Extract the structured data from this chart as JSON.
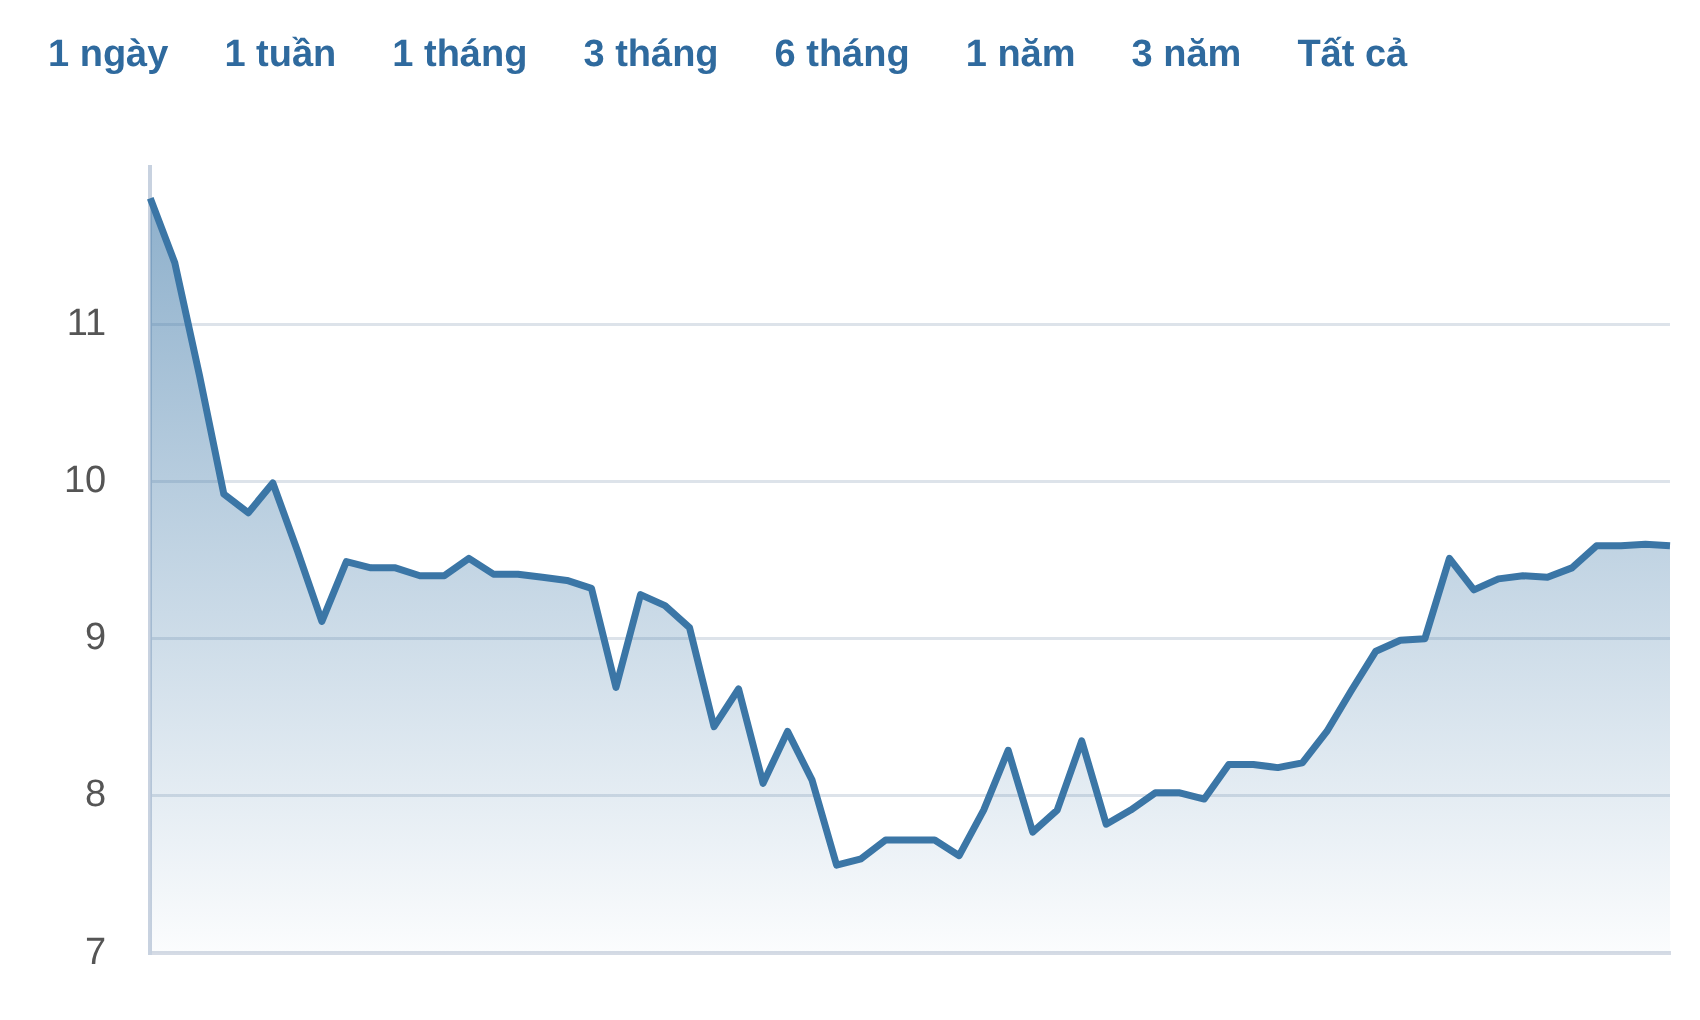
{
  "chart_data": {
    "type": "area",
    "annotations": [
      "1 ngày",
      "1 tuần",
      "1 tháng",
      "3 tháng",
      "6 tháng",
      "1 năm",
      "3 năm",
      "Tất cả"
    ],
    "categories": [
      null,
      null,
      null,
      null,
      null,
      null,
      null,
      null,
      null,
      null,
      null,
      null,
      null,
      null,
      null,
      null,
      null,
      null,
      null,
      null,
      null,
      null,
      null,
      null,
      null,
      null,
      null,
      null,
      null,
      null,
      null,
      null,
      null,
      null,
      null,
      null,
      null,
      null,
      null,
      null,
      null,
      null,
      null,
      null,
      null,
      null,
      null,
      null,
      null,
      null,
      null,
      null,
      null,
      null,
      null,
      null,
      null,
      null,
      null,
      null,
      null,
      null,
      null
    ],
    "series": [
      {
        "color": "#3b76a6",
        "values": [
          11.8,
          11.39,
          10.68,
          9.92,
          9.8,
          9.99,
          9.56,
          9.11,
          9.49,
          9.45,
          9.45,
          9.4,
          9.4,
          9.51,
          9.41,
          9.41,
          9.39,
          9.37,
          9.32,
          8.69,
          9.28,
          9.21,
          9.07,
          8.44,
          8.68,
          8.08,
          8.41,
          8.1,
          7.56,
          7.6,
          7.72,
          7.72,
          7.72,
          7.62,
          7.91,
          8.29,
          7.77,
          7.91,
          8.35,
          7.82,
          7.91,
          8.02,
          8.02,
          7.98,
          8.2,
          8.2,
          8.18,
          8.21,
          8.41,
          8.67,
          8.92,
          8.99,
          9.0,
          9.51,
          9.31,
          9.38,
          9.4,
          9.39,
          9.45,
          9.59,
          9.59,
          9.6,
          9.59
        ]
      }
    ],
    "ylim": [
      7,
      12
    ],
    "yticks": [
      7,
      8,
      9,
      10,
      11
    ],
    "grid": "y",
    "legend": false,
    "tick_labels": "y"
  }
}
